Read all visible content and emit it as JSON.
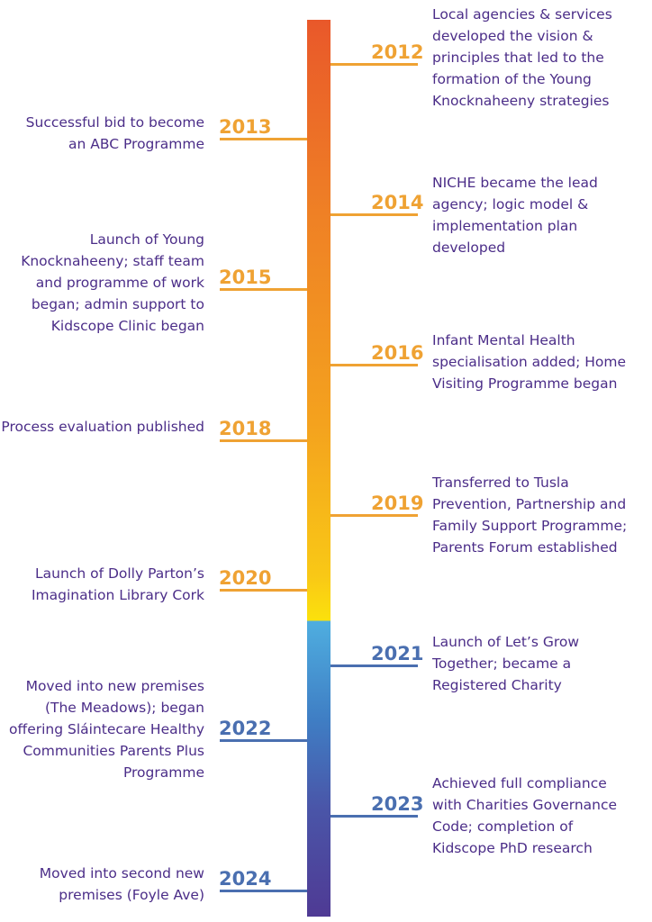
{
  "colors": {
    "text": "#4b2d88",
    "orange": "#efa233",
    "blue": "#4a6fb0"
  },
  "events": [
    {
      "year": "2012",
      "side": "right",
      "color": "orange",
      "text": "Local agencies & services\ndeveloped the vision &\nprinciples that led to the\nformation of the Young\nKnocknaheeny strategies"
    },
    {
      "year": "2013",
      "side": "left",
      "color": "orange",
      "text": "Successful bid to become\nan ABC Programme"
    },
    {
      "year": "2014",
      "side": "right",
      "color": "orange",
      "text": "NICHE became the lead\nagency; logic model &\nimplementation plan\ndeveloped"
    },
    {
      "year": "2015",
      "side": "left",
      "color": "orange",
      "text": "Launch of Young\nKnocknaheeny; staff team\nand programme of work\nbegan; admin support to\nKidscope Clinic began"
    },
    {
      "year": "2016",
      "side": "right",
      "color": "orange",
      "text": "Infant Mental Health\nspecialisation added; Home\nVisiting Programme began"
    },
    {
      "year": "2018",
      "side": "left",
      "color": "orange",
      "text": "Process evaluation published"
    },
    {
      "year": "2019",
      "side": "right",
      "color": "orange",
      "text": "Transferred to Tusla\nPrevention, Partnership and\nFamily Support Programme;\nParents Forum established"
    },
    {
      "year": "2020",
      "side": "left",
      "color": "orange",
      "text": "Launch of Dolly Parton’s\nImagination Library Cork"
    },
    {
      "year": "2021",
      "side": "right",
      "color": "blue",
      "text": "Launch of Let’s Grow\nTogether; became a\nRegistered Charity"
    },
    {
      "year": "2022",
      "side": "left",
      "color": "blue",
      "text": "Moved into new premises\n(The Meadows); began\noffering Sláintecare Healthy\nCommunities Parents Plus\nProgramme"
    },
    {
      "year": "2023",
      "side": "right",
      "color": "blue",
      "text": "Achieved full compliance\nwith Charities Governance\nCode; completion of\nKidscope PhD research"
    },
    {
      "year": "2024",
      "side": "left",
      "color": "blue",
      "text": "Moved into second new\npremises  (Foyle Ave)"
    }
  ]
}
